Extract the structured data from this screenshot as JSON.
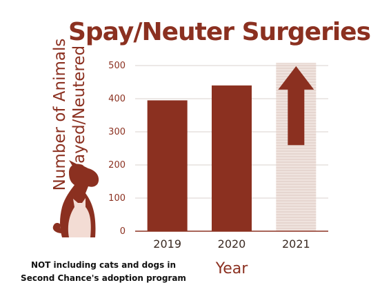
{
  "chart_data": {
    "type": "bar",
    "title": "Spay/Neuter Surgeries",
    "ylabel_lines": [
      "Number of Animals",
      "Spayed/Neutered"
    ],
    "xlabel": "Year",
    "categories": [
      "2019",
      "2020",
      "2021"
    ],
    "values": [
      395,
      440,
      510
    ],
    "bar_styles": [
      "solid",
      "solid",
      "projected"
    ],
    "ylim": [
      0,
      500
    ],
    "yticks": [
      "0",
      "100",
      "200",
      "300",
      "400",
      "500"
    ],
    "grid": true,
    "colors": {
      "bar": "#8b3020",
      "projected": "#ead9d3",
      "arrow": "#8b3020",
      "grid": "#d8d0cc"
    },
    "icons": [
      "dog-cat-silhouette-icon",
      "up-arrow-icon"
    ]
  },
  "footnote_lines": [
    "NOT including cats and dogs in",
    "Second Chance's adoption program"
  ]
}
